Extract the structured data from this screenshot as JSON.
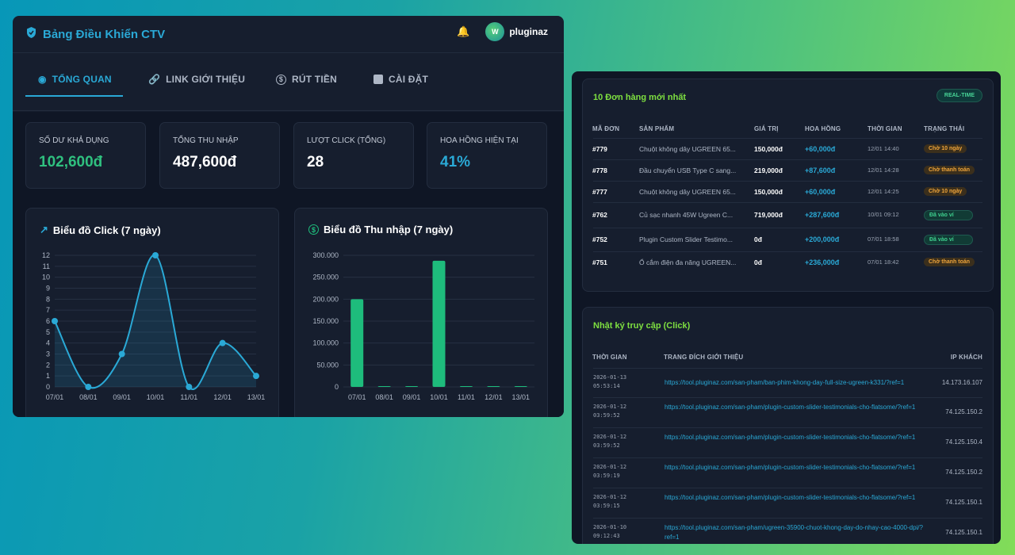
{
  "header": {
    "title": "Bảng Điều Khiển CTV",
    "username": "pluginaz",
    "icons": [
      "shield-icon",
      "bell-icon",
      "avatar"
    ]
  },
  "tabs": [
    {
      "label": "TỔNG QUAN",
      "icon": "dashboard-icon",
      "active": true
    },
    {
      "label": "LINK GIỚI THIỆU",
      "icon": "link-icon"
    },
    {
      "label": "RÚT TIỀN",
      "icon": "dollar-icon"
    },
    {
      "label": "CÀI ĐẶT",
      "icon": "settings-icon"
    }
  ],
  "stats": [
    {
      "label": "SỐ DƯ KHẢ DỤNG",
      "value": "102,600đ",
      "color": "#2fc07f"
    },
    {
      "label": "TỔNG THU NHẬP",
      "value": "487,600đ",
      "color": "#ffffff"
    },
    {
      "label": "LƯỢT CLICK (TỔNG)",
      "value": "28",
      "color": "#ffffff"
    },
    {
      "label": "HOA HỒNG HIỆN TẠI",
      "value": "41%",
      "color": "#2aa9d6"
    }
  ],
  "chart_data": [
    {
      "type": "area",
      "title": "Biểu đồ Click (7 ngày)",
      "categories": [
        "07/01",
        "08/01",
        "09/01",
        "10/01",
        "11/01",
        "12/01",
        "13/01"
      ],
      "values": [
        6,
        0,
        3,
        12,
        0,
        4,
        1
      ],
      "ylim": [
        0,
        12
      ],
      "yticks": [
        "0",
        "1",
        "2",
        "3",
        "4",
        "5",
        "6",
        "7",
        "8",
        "9",
        "10",
        "11",
        "12"
      ],
      "color": "#2aa9d6"
    },
    {
      "type": "bar",
      "title": "Biểu đồ Thu nhập (7 ngày)",
      "categories": [
        "07/01",
        "08/01",
        "09/01",
        "10/01",
        "11/01",
        "12/01",
        "13/01"
      ],
      "values": [
        200000,
        0,
        0,
        287600,
        0,
        0,
        0
      ],
      "ylim": [
        0,
        300000
      ],
      "yticks": [
        "0",
        "50.000",
        "100.000",
        "150.000",
        "200.000",
        "250.000",
        "300.000"
      ],
      "color": "#1ebc7c"
    }
  ],
  "orders": {
    "title": "10 Đơn hàng mới nhất",
    "badge": "REAL-TIME",
    "headers": [
      "MÃ ĐƠN",
      "SẢN PHẨM",
      "GIÁ TRỊ",
      "HOA HỒNG",
      "THỜI GIAN",
      "TRẠNG THÁI"
    ],
    "rows": [
      {
        "id": "#779",
        "product": "Chuột không dây UGREEN 65...",
        "value": "150,000đ",
        "commission": "+60,000đ",
        "time": "12/01 14:40",
        "status": "Chờ 10 ngày",
        "type": "wait"
      },
      {
        "id": "#778",
        "product": "Đầu chuyển USB Type C sang...",
        "value": "219,000đ",
        "commission": "+87,600đ",
        "time": "12/01 14:28",
        "status": "Chờ thanh toán",
        "type": "wait"
      },
      {
        "id": "#777",
        "product": "Chuột không dây UGREEN 65...",
        "value": "150,000đ",
        "commission": "+60,000đ",
        "time": "12/01 14:25",
        "status": "Chờ 10 ngày",
        "type": "wait"
      },
      {
        "id": "#762",
        "product": "Củ sạc nhanh 45W Ugreen C...",
        "value": "719,000đ",
        "commission": "+287,600đ",
        "time": "10/01 09:12",
        "status": "Đã vào ví",
        "type": "ok"
      },
      {
        "id": "#752",
        "product": "Plugin Custom Slider Testimo...",
        "value": "0đ",
        "commission": "+200,000đ",
        "time": "07/01 18:58",
        "status": "Đã vào ví",
        "type": "ok"
      },
      {
        "id": "#751",
        "product": "Ổ cắm điện đa năng UGREEN...",
        "value": "0đ",
        "commission": "+236,000đ",
        "time": "07/01 18:42",
        "status": "Chờ thanh toán",
        "type": "wait"
      }
    ]
  },
  "log": {
    "title": "Nhật ký truy cập (Click)",
    "headers": [
      "THỜI GIAN",
      "TRANG ĐÍCH GIỚI THIỆU",
      "IP KHÁCH"
    ],
    "rows": [
      {
        "date": "2026-01-13",
        "time": "05:53:14",
        "url": "https://tool.pluginaz.com/san-pham/ban-phim-khong-day-full-size-ugreen-k331/?ref=1",
        "ip": "14.173.16.107"
      },
      {
        "date": "2026-01-12",
        "time": "03:59:52",
        "url": "https://tool.pluginaz.com/san-pham/plugin-custom-slider-testimonials-cho-flatsome/?ref=1",
        "ip": "74.125.150.2"
      },
      {
        "date": "2026-01-12",
        "time": "03:59:52",
        "url": "https://tool.pluginaz.com/san-pham/plugin-custom-slider-testimonials-cho-flatsome/?ref=1",
        "ip": "74.125.150.4"
      },
      {
        "date": "2026-01-12",
        "time": "03:59:19",
        "url": "https://tool.pluginaz.com/san-pham/plugin-custom-slider-testimonials-cho-flatsome/?ref=1",
        "ip": "74.125.150.2"
      },
      {
        "date": "2026-01-12",
        "time": "03:59:15",
        "url": "https://tool.pluginaz.com/san-pham/plugin-custom-slider-testimonials-cho-flatsome/?ref=1",
        "ip": "74.125.150.1"
      },
      {
        "date": "2026-01-10",
        "time": "09:12:43",
        "url": "https://tool.pluginaz.com/san-pham/ugreen-35900-chuot-khong-day-do-nhay-cao-4000-dpi/?ref=1",
        "ip": "74.125.150.1"
      }
    ]
  }
}
